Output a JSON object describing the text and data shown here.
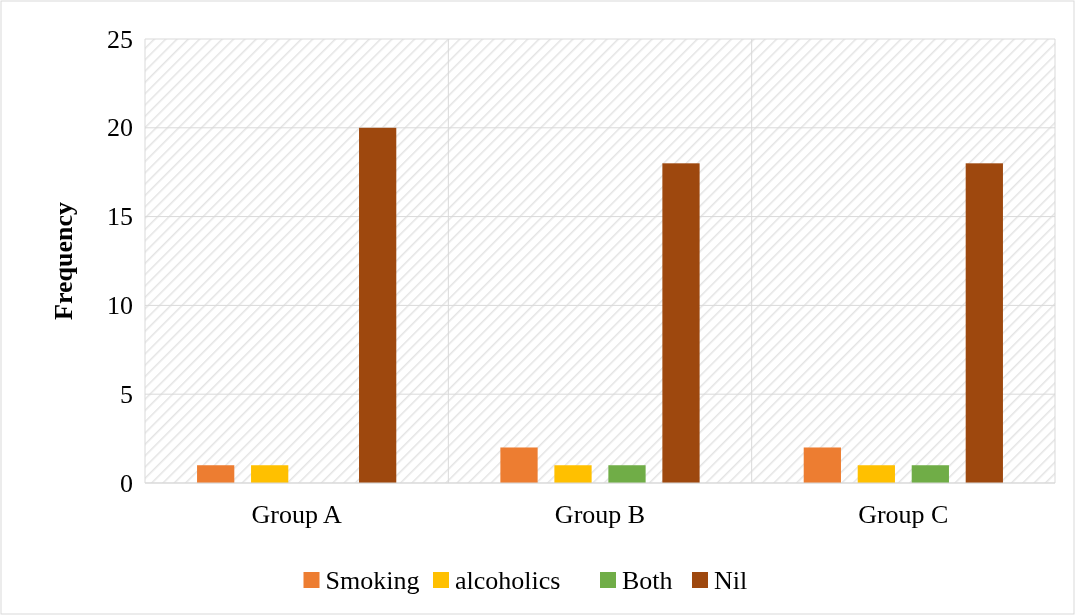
{
  "chart_data": {
    "type": "bar",
    "ylabel": "Frequency",
    "categories": [
      "Group A",
      "Group B",
      "Group C"
    ],
    "series": [
      {
        "name": "Smoking",
        "color": "#ed7d31",
        "values": [
          1,
          2,
          2
        ]
      },
      {
        "name": "alcoholics",
        "color": "#ffc000",
        "values": [
          1,
          1,
          1
        ]
      },
      {
        "name": "Both",
        "color": "#70ad47",
        "values": [
          0,
          1,
          1
        ]
      },
      {
        "name": "Nil",
        "color": "#9e480e",
        "values": [
          20,
          18,
          18
        ]
      }
    ],
    "ylim": [
      0,
      25
    ],
    "yticks": [
      0,
      5,
      10,
      15,
      20,
      25
    ],
    "grid": true,
    "legend": "bottom"
  }
}
